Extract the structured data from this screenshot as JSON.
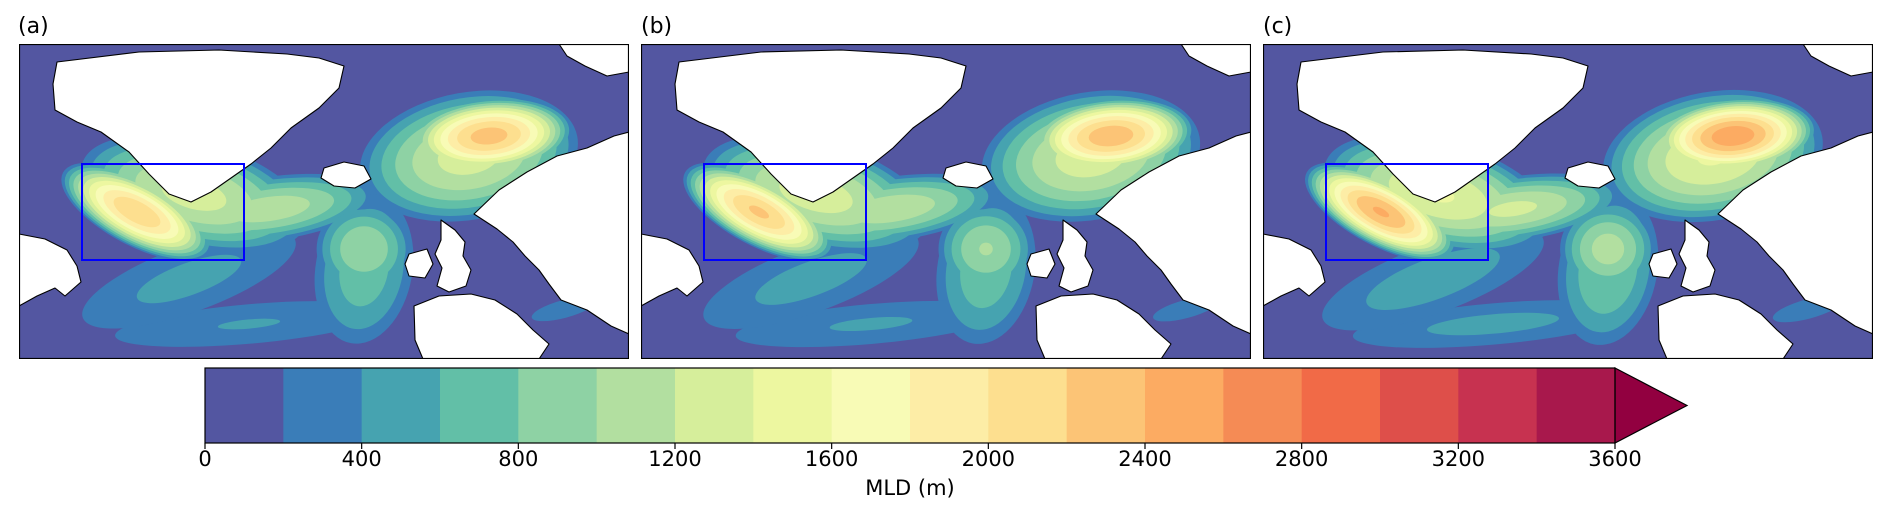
{
  "panels": [
    {
      "id": "a",
      "label": "(a)",
      "intensity": 0.9
    },
    {
      "id": "b",
      "label": "(b)",
      "intensity": 0.92
    },
    {
      "id": "c",
      "label": "(c)",
      "intensity": 1.0
    }
  ],
  "colorbar": {
    "title": "MLD (m)",
    "min": 0,
    "max": 3600,
    "step": 200,
    "extend": "max",
    "tick_labels": [
      "0",
      "400",
      "800",
      "1200",
      "1600",
      "2000",
      "2400",
      "2800",
      "3200",
      "3600"
    ],
    "colors": [
      "#5356a1",
      "#3a7db8",
      "#46a3b0",
      "#62bfa7",
      "#8ed2a4",
      "#b2dfa0",
      "#d6ee9b",
      "#edf7a0",
      "#f8fbb6",
      "#fdeda6",
      "#fddf8f",
      "#fcc476",
      "#fcab62",
      "#f58b55",
      "#f16a47",
      "#de4f4a",
      "#c73250",
      "#a8184c",
      "#920040"
    ]
  },
  "box_color": "#0000ff",
  "land_color": "#ffffff",
  "ocean_color": "#5356a1"
}
